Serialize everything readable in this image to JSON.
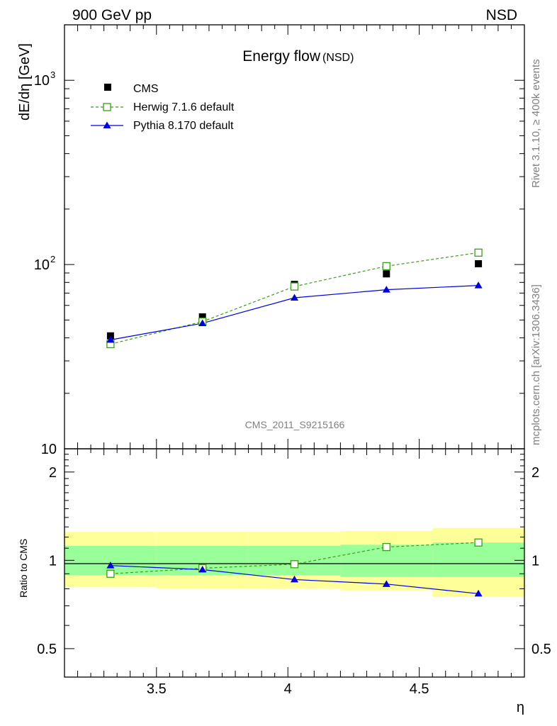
{
  "header": {
    "left": "900 GeV pp",
    "right": "NSD"
  },
  "side_labels": {
    "top": "Rivet 3.1.10, ≥ 400k events",
    "bottom": "mcplots.cern.ch [arXiv:1306.3436]"
  },
  "watermark": "CMS_2011_S9215166",
  "colors": {
    "herwig": "#3f9a1e",
    "pythia": "#0000e0",
    "band_outer": "#ffff99",
    "band_inner": "#99ff99",
    "data": "#000000"
  },
  "chart_data": [
    {
      "type": "scatter",
      "title": "Energy flow",
      "title_sub": "(NSD)",
      "xlabel": "",
      "ylabel": "dE/dη [GeV]",
      "yscale": "log",
      "xlim": [
        3.15,
        4.9
      ],
      "ylim": [
        10,
        2000
      ],
      "y_ticks": [
        {
          "value": 10,
          "label": "10",
          "exp": ""
        },
        {
          "value": 100,
          "label": "10",
          "exp": "2"
        },
        {
          "value": 1000,
          "label": "10",
          "exp": "3"
        }
      ],
      "legend_position": "top-left",
      "x": [
        3.325,
        3.675,
        4.025,
        4.375,
        4.725
      ],
      "series": [
        {
          "name": "CMS",
          "values": [
            41,
            52,
            78,
            89,
            101
          ]
        },
        {
          "name": "Herwig 7.1.6 default",
          "values": [
            37,
            49,
            76,
            98,
            116
          ]
        },
        {
          "name": "Pythia 8.170 default",
          "values": [
            39,
            48,
            66,
            73,
            77
          ]
        }
      ]
    },
    {
      "type": "line",
      "title": "",
      "xlabel": "η",
      "ylabel": "Ratio to CMS",
      "yscale": "log",
      "xlim": [
        3.15,
        4.9
      ],
      "ylim": [
        0.4,
        2.4
      ],
      "x_ticks": [
        {
          "value": 3.5,
          "label": "3.5"
        },
        {
          "value": 4,
          "label": "4"
        },
        {
          "value": 4.5,
          "label": "4.5"
        }
      ],
      "y_ticks": [
        {
          "value": 0.5,
          "label": "0.5"
        },
        {
          "value": 1,
          "label": "1"
        },
        {
          "value": 2,
          "label": "2"
        }
      ],
      "bins": [
        [
          3.15,
          3.5
        ],
        [
          3.5,
          3.85
        ],
        [
          3.85,
          4.2
        ],
        [
          4.2,
          4.55
        ],
        [
          4.55,
          4.9
        ]
      ],
      "band_outer": [
        [
          0.81,
          1.25
        ],
        [
          0.8,
          1.25
        ],
        [
          0.8,
          1.25
        ],
        [
          0.79,
          1.26
        ],
        [
          0.75,
          1.29
        ]
      ],
      "band_inner": [
        [
          0.89,
          1.12
        ],
        [
          0.89,
          1.12
        ],
        [
          0.89,
          1.12
        ],
        [
          0.88,
          1.13
        ],
        [
          0.88,
          1.15
        ]
      ],
      "x": [
        3.325,
        3.675,
        4.025,
        4.375,
        4.725
      ],
      "series": [
        {
          "name": "Herwig 7.1.6 default",
          "values": [
            0.9,
            0.94,
            0.97,
            1.11,
            1.15
          ]
        },
        {
          "name": "Pythia 8.170 default",
          "values": [
            0.96,
            0.93,
            0.86,
            0.83,
            0.77
          ]
        }
      ]
    }
  ]
}
